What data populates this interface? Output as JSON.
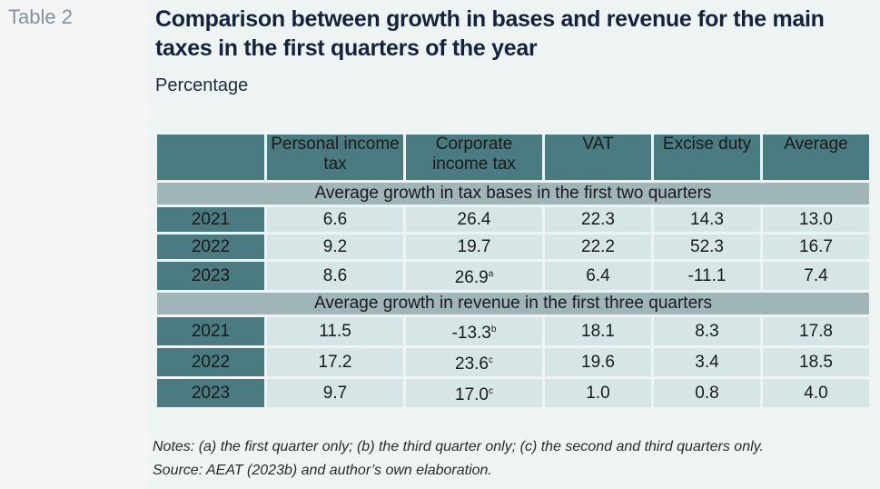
{
  "table_label": "Table 2",
  "title": "Comparison between growth in bases and revenue for the main taxes in the first quarters of the year",
  "subtitle": "Percentage",
  "columns": [
    "",
    "Personal income tax",
    "Corporate income tax",
    "VAT",
    "Excise duty",
    "Average"
  ],
  "sections": [
    {
      "label": "Average growth in tax bases in the first two quarters",
      "rows": [
        {
          "year": "2021",
          "values": [
            "6.6",
            "26.4",
            "22.3",
            "14.3",
            "13.0"
          ],
          "notes": [
            "",
            "",
            "",
            "",
            ""
          ]
        },
        {
          "year": "2022",
          "values": [
            "9.2",
            "19.7",
            "22.2",
            "52.3",
            "16.7"
          ],
          "notes": [
            "",
            "",
            "",
            "",
            ""
          ]
        },
        {
          "year": "2023",
          "values": [
            "8.6",
            "26.9",
            "6.4",
            "-11.1",
            "7.4"
          ],
          "notes": [
            "",
            "a",
            "",
            "",
            ""
          ]
        }
      ]
    },
    {
      "label": "Average growth in revenue in the first three quarters",
      "rows": [
        {
          "year": "2021",
          "values": [
            "11.5",
            "-13.3",
            "18.1",
            "8.3",
            "17.8"
          ],
          "notes": [
            "",
            "b",
            "",
            "",
            ""
          ]
        },
        {
          "year": "2022",
          "values": [
            "17.2",
            "23.6",
            "19.6",
            "3.4",
            "18.5"
          ],
          "notes": [
            "",
            "c",
            "",
            "",
            ""
          ]
        },
        {
          "year": "2023",
          "values": [
            "9.7",
            "17.0",
            "1.0",
            "0.8",
            "4.0"
          ],
          "notes": [
            "",
            "c",
            "",
            "",
            ""
          ]
        }
      ]
    }
  ],
  "notes_text": "Notes: (a) the first quarter only; (b) the third quarter only; (c) the second and third quarters only.",
  "source_text": "Source: AEAT (2023b) and author’s own elaboration."
}
